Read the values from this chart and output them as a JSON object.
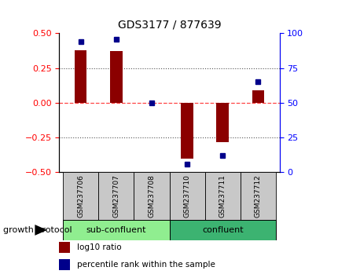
{
  "title": "GDS3177 / 877639",
  "samples": [
    "GSM237706",
    "GSM237707",
    "GSM237708",
    "GSM237710",
    "GSM237711",
    "GSM237712"
  ],
  "log10_ratio": [
    0.38,
    0.37,
    0.0,
    -0.4,
    -0.28,
    0.09
  ],
  "percentile_rank": [
    94,
    96,
    50,
    6,
    12,
    65
  ],
  "ylim_left": [
    -0.5,
    0.5
  ],
  "ylim_right": [
    0,
    100
  ],
  "left_yticks": [
    -0.5,
    -0.25,
    0,
    0.25,
    0.5
  ],
  "right_yticks": [
    0,
    25,
    50,
    75,
    100
  ],
  "groups": [
    {
      "label": "sub-confluent",
      "indices": [
        0,
        1,
        2
      ],
      "color": "#90EE90"
    },
    {
      "label": "confluent",
      "indices": [
        3,
        4,
        5
      ],
      "color": "#3CB371"
    }
  ],
  "bar_color": "#8B0000",
  "dot_color": "#00008B",
  "bar_width": 0.35,
  "group_label": "growth protocol",
  "legend_items": [
    {
      "color": "#8B0000",
      "label": "log10 ratio"
    },
    {
      "color": "#00008B",
      "label": "percentile rank within the sample"
    }
  ],
  "hline_zero_color": "#FF4444",
  "hline_zero_style": "--",
  "hgrid_color": "#555555",
  "hgrid_style": ":",
  "sample_box_color": "#C8C8C8",
  "background_color": "#ffffff"
}
